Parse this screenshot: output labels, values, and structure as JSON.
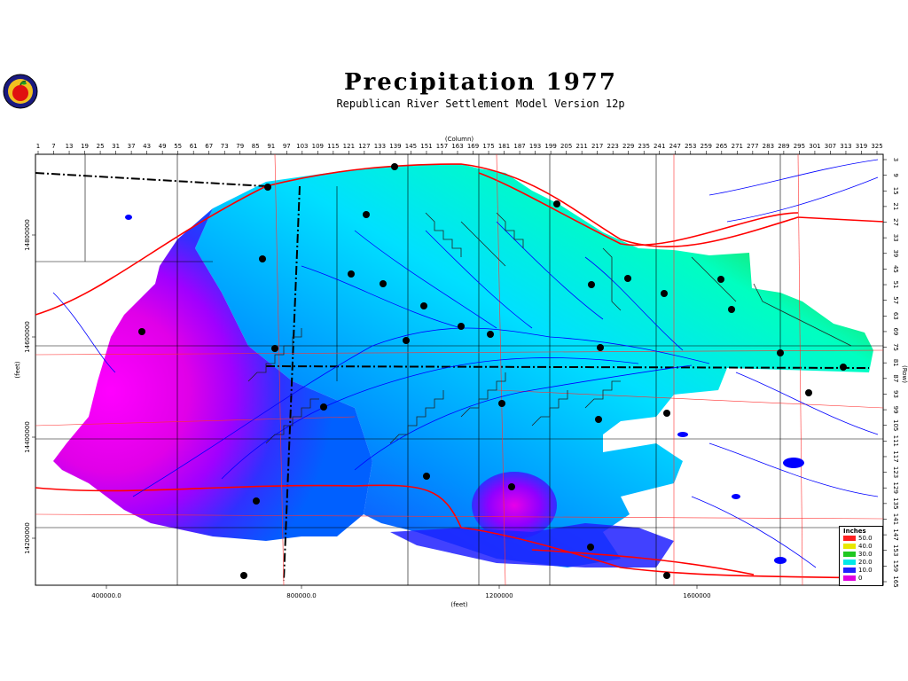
{
  "title": "Precipitation  1977",
  "subtitle": "Republican River Settlement Model Version 12p",
  "column_axis_label": "(Column)",
  "row_axis_label": "(Row)",
  "x_axis_label": "(feet)",
  "y_axis_label": "(feet)",
  "column_ticks": [
    "1",
    "7",
    "13",
    "19",
    "25",
    "31",
    "37",
    "43",
    "49",
    "55",
    "61",
    "67",
    "73",
    "79",
    "85",
    "91",
    "97",
    "103",
    "109",
    "115",
    "121",
    "127",
    "133",
    "139",
    "145",
    "151",
    "157",
    "163",
    "169",
    "175",
    "181",
    "187",
    "193",
    "199",
    "205",
    "211",
    "217",
    "223",
    "229",
    "235",
    "241",
    "247",
    "253",
    "259",
    "265",
    "271",
    "277",
    "283",
    "289",
    "295",
    "301",
    "307",
    "313",
    "319",
    "325"
  ],
  "row_ticks": [
    "3",
    "9",
    "15",
    "21",
    "27",
    "33",
    "39",
    "45",
    "51",
    "57",
    "63",
    "69",
    "75",
    "81",
    "87",
    "93",
    "99",
    "105",
    "111",
    "117",
    "123",
    "129",
    "135",
    "141",
    "147",
    "153",
    "159",
    "165"
  ],
  "x_ticks": [
    "400000.0",
    "800000.0",
    "1200000",
    "1600000"
  ],
  "y_ticks": [
    "14800000",
    "14600000",
    "14400000",
    "14200000"
  ],
  "legend": {
    "title": "Inches",
    "items": [
      {
        "label": "50.0",
        "color": "#ff2020"
      },
      {
        "label": "40.0",
        "color": "#e8e800"
      },
      {
        "label": "30.0",
        "color": "#20c820"
      },
      {
        "label": "20.0",
        "color": "#00e8e8"
      },
      {
        "label": "10.0",
        "color": "#2020ff"
      },
      {
        "label": "0",
        "color": "#e000e0"
      }
    ]
  },
  "colors": {
    "road": "#ff0000",
    "stream": "#0000ff",
    "county_border": "#000000",
    "station": "#000000"
  }
}
